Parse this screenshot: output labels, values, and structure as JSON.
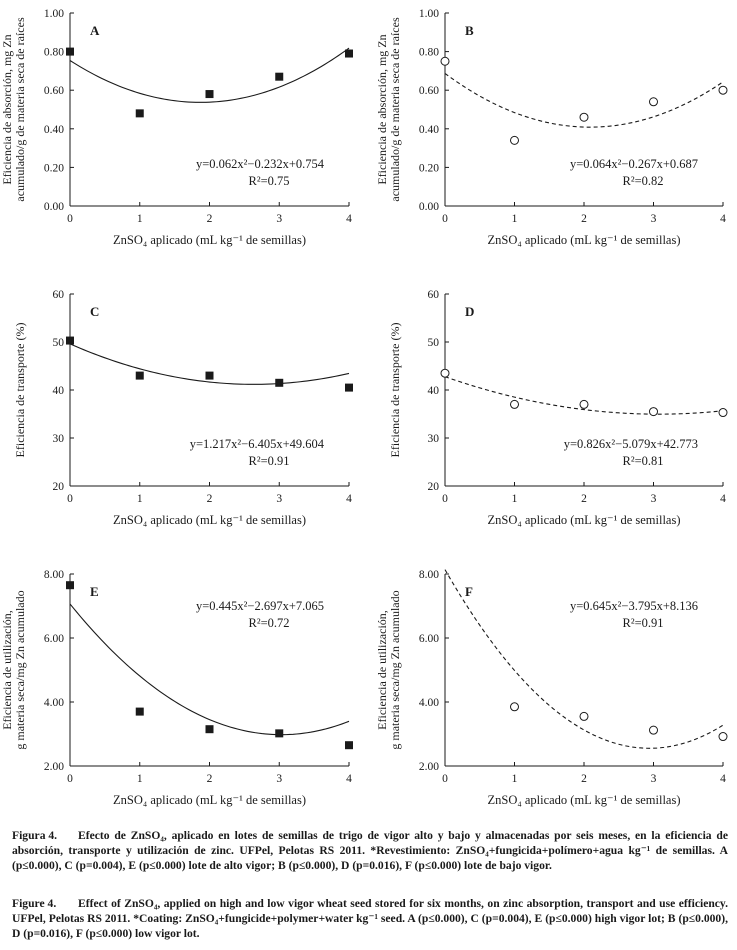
{
  "colors": {
    "ink": "#1a1a1a",
    "background": "#ffffff"
  },
  "chart_data": [
    {
      "panel": "A",
      "type": "scatter",
      "marker": "filled-square",
      "curve_style": "solid",
      "x": [
        0,
        1,
        2,
        3,
        4
      ],
      "y": [
        0.8,
        0.48,
        0.58,
        0.67,
        0.79
      ],
      "fit": {
        "a": 0.062,
        "b": -0.232,
        "c": 0.754
      },
      "equation": "y=0.062x²−0.232x+0.754",
      "r2": "R²=0.75",
      "ylabel_lines": [
        "Eficiencia de absorción, mg Zn",
        "acumulado/g de materia seca de raíces"
      ],
      "xlabel": "ZnSO₄ aplicado (mL kg⁻¹ de semillas)",
      "xlim": [
        0,
        4
      ],
      "ylim": [
        0,
        1
      ],
      "xticks": [
        "0",
        "1",
        "2",
        "3",
        "4"
      ],
      "yticks": [
        0,
        0.2,
        0.4,
        0.6,
        0.8,
        1.0
      ],
      "ytick_labels": [
        "0.00",
        "0.20",
        "0.40",
        "0.60",
        "0.80",
        "1.00"
      ],
      "eq_anchor": "bottom-right"
    },
    {
      "panel": "B",
      "type": "scatter",
      "marker": "open-circle",
      "curve_style": "dashed",
      "x": [
        0,
        1,
        2,
        3,
        4
      ],
      "y": [
        0.75,
        0.34,
        0.46,
        0.54,
        0.6
      ],
      "fit": {
        "a": 0.064,
        "b": -0.267,
        "c": 0.687
      },
      "equation": "y=0.064x²−0.267x+0.687",
      "r2": "R²=0.82",
      "ylabel_lines": [
        "Eficiencia de absorción, mg Zn",
        "acumulado/g de materia seca de raíces"
      ],
      "xlabel": "ZnSO₄ aplicado (mL kg⁻¹ de semillas)",
      "xlim": [
        0,
        4
      ],
      "ylim": [
        0,
        1
      ],
      "xticks": [
        "0",
        "1",
        "2",
        "3",
        "4"
      ],
      "yticks": [
        0,
        0.2,
        0.4,
        0.6,
        0.8,
        1.0
      ],
      "ytick_labels": [
        "0.00",
        "0.20",
        "0.40",
        "0.60",
        "0.80",
        "1.00"
      ],
      "eq_anchor": "bottom-right"
    },
    {
      "panel": "C",
      "type": "scatter",
      "marker": "filled-square",
      "curve_style": "solid",
      "x": [
        0,
        1,
        2,
        3,
        4
      ],
      "y": [
        50.3,
        43.0,
        43.0,
        41.5,
        40.5
      ],
      "fit": {
        "a": 1.217,
        "b": -6.405,
        "c": 49.604
      },
      "equation": "y=1.217x²−6.405x+49.604",
      "r2": "R²=0.91",
      "ylabel_lines": [
        "Eficiencia de transporte (%)"
      ],
      "xlabel": "ZnSO₄ aplicado (mL kg⁻¹ de semillas)",
      "xlim": [
        0,
        4
      ],
      "ylim": [
        20,
        60
      ],
      "xticks": [
        "0",
        "1",
        "2",
        "3",
        "4"
      ],
      "yticks": [
        20,
        30,
        40,
        50,
        60
      ],
      "ytick_labels": [
        "20",
        "30",
        "40",
        "50",
        "60"
      ],
      "eq_anchor": "bottom-right"
    },
    {
      "panel": "D",
      "type": "scatter",
      "marker": "open-circle",
      "curve_style": "dashed",
      "x": [
        0,
        1,
        2,
        3,
        4
      ],
      "y": [
        43.5,
        37.0,
        37.0,
        35.5,
        35.3
      ],
      "fit": {
        "a": 0.826,
        "b": -5.079,
        "c": 42.773
      },
      "equation": "y=0.826x²−5.079x+42.773",
      "r2": "R²=0.81",
      "ylabel_lines": [
        "Eficiencia de transporte (%)"
      ],
      "xlabel": "ZnSO₄ aplicado (mL kg⁻¹ de semillas)",
      "xlim": [
        0,
        4
      ],
      "ylim": [
        20,
        60
      ],
      "xticks": [
        "0",
        "1",
        "2",
        "3",
        "4"
      ],
      "yticks": [
        20,
        30,
        40,
        50,
        60
      ],
      "ytick_labels": [
        "20",
        "30",
        "40",
        "50",
        "60"
      ],
      "eq_anchor": "bottom-right"
    },
    {
      "panel": "E",
      "type": "scatter",
      "marker": "filled-square",
      "curve_style": "solid",
      "x": [
        0,
        1,
        2,
        3,
        4
      ],
      "y": [
        7.65,
        3.7,
        3.15,
        3.02,
        2.65
      ],
      "fit": {
        "a": 0.445,
        "b": -2.697,
        "c": 7.065
      },
      "equation": "y=0.445x²−2.697x+7.065",
      "r2": "R²=0.72",
      "ylabel_lines": [
        "Eficiencia de utilización,",
        "g materia seca/mg Zn acumulado"
      ],
      "xlabel": "ZnSO₄ aplicado (mL kg⁻¹ de semillas)",
      "xlim": [
        0,
        4
      ],
      "ylim": [
        2,
        8
      ],
      "xticks": [
        "0",
        "1",
        "2",
        "3",
        "4"
      ],
      "yticks": [
        2,
        4,
        6,
        8
      ],
      "ytick_labels": [
        "2.00",
        "4.00",
        "6.00",
        "8.00"
      ],
      "eq_anchor": "top-right"
    },
    {
      "panel": "F",
      "type": "scatter",
      "marker": "open-circle",
      "curve_style": "dashed",
      "x": [
        1,
        2,
        3,
        4
      ],
      "y": [
        3.85,
        3.55,
        3.12,
        2.92
      ],
      "fit": {
        "a": 0.645,
        "b": -3.795,
        "c": 8.136
      },
      "equation": "y=0.645x²−3.795x+8.136",
      "r2": "R²=0.91",
      "ylabel_lines": [
        "Eficiencia de utilización,",
        "g materia seca/mg Zn acumulado"
      ],
      "xlabel": "ZnSO₄ aplicado (mL kg⁻¹ de semillas)",
      "xlim": [
        0,
        4
      ],
      "ylim": [
        2,
        8
      ],
      "xticks": [
        "0",
        "1",
        "2",
        "3",
        "4"
      ],
      "yticks": [
        2,
        4,
        6,
        8
      ],
      "ytick_labels": [
        "2.00",
        "4.00",
        "6.00",
        "8.00"
      ],
      "eq_anchor": "top-right"
    }
  ],
  "caption": {
    "es_label": "Figura 4.",
    "es_text": "Efecto de ZnSO₄, aplicado en lotes de semillas de trigo de vigor alto y bajo y almacenadas por seis meses, en la eficiencia de absorción, transporte y utilización de zinc. UFPel, Pelotas RS 2011. *Revestimiento: ZnSO₄+fungicida+polímero+agua kg⁻¹ de semillas. A (p≤0.000), C (p=0.004), E (p≤0.000) lote de alto vigor; B (p≤0.000), D (p=0.016), F (p≤0.000) lote de bajo vigor.",
    "en_label": "Figure 4.",
    "en_text": "Effect of ZnSO₄, applied on high and low vigor wheat seed stored for six months, on zinc absorption, transport and use efficiency. UFPel, Pelotas RS 2011. *Coating: ZnSO₄+fungicide+polymer+water kg⁻¹ seed. A (p≤0.000), C (p=0.004), E (p≤0.000) high vigor lot; B (p≤0.000), D (p=0.016), F (p≤0.000) low vigor lot."
  }
}
